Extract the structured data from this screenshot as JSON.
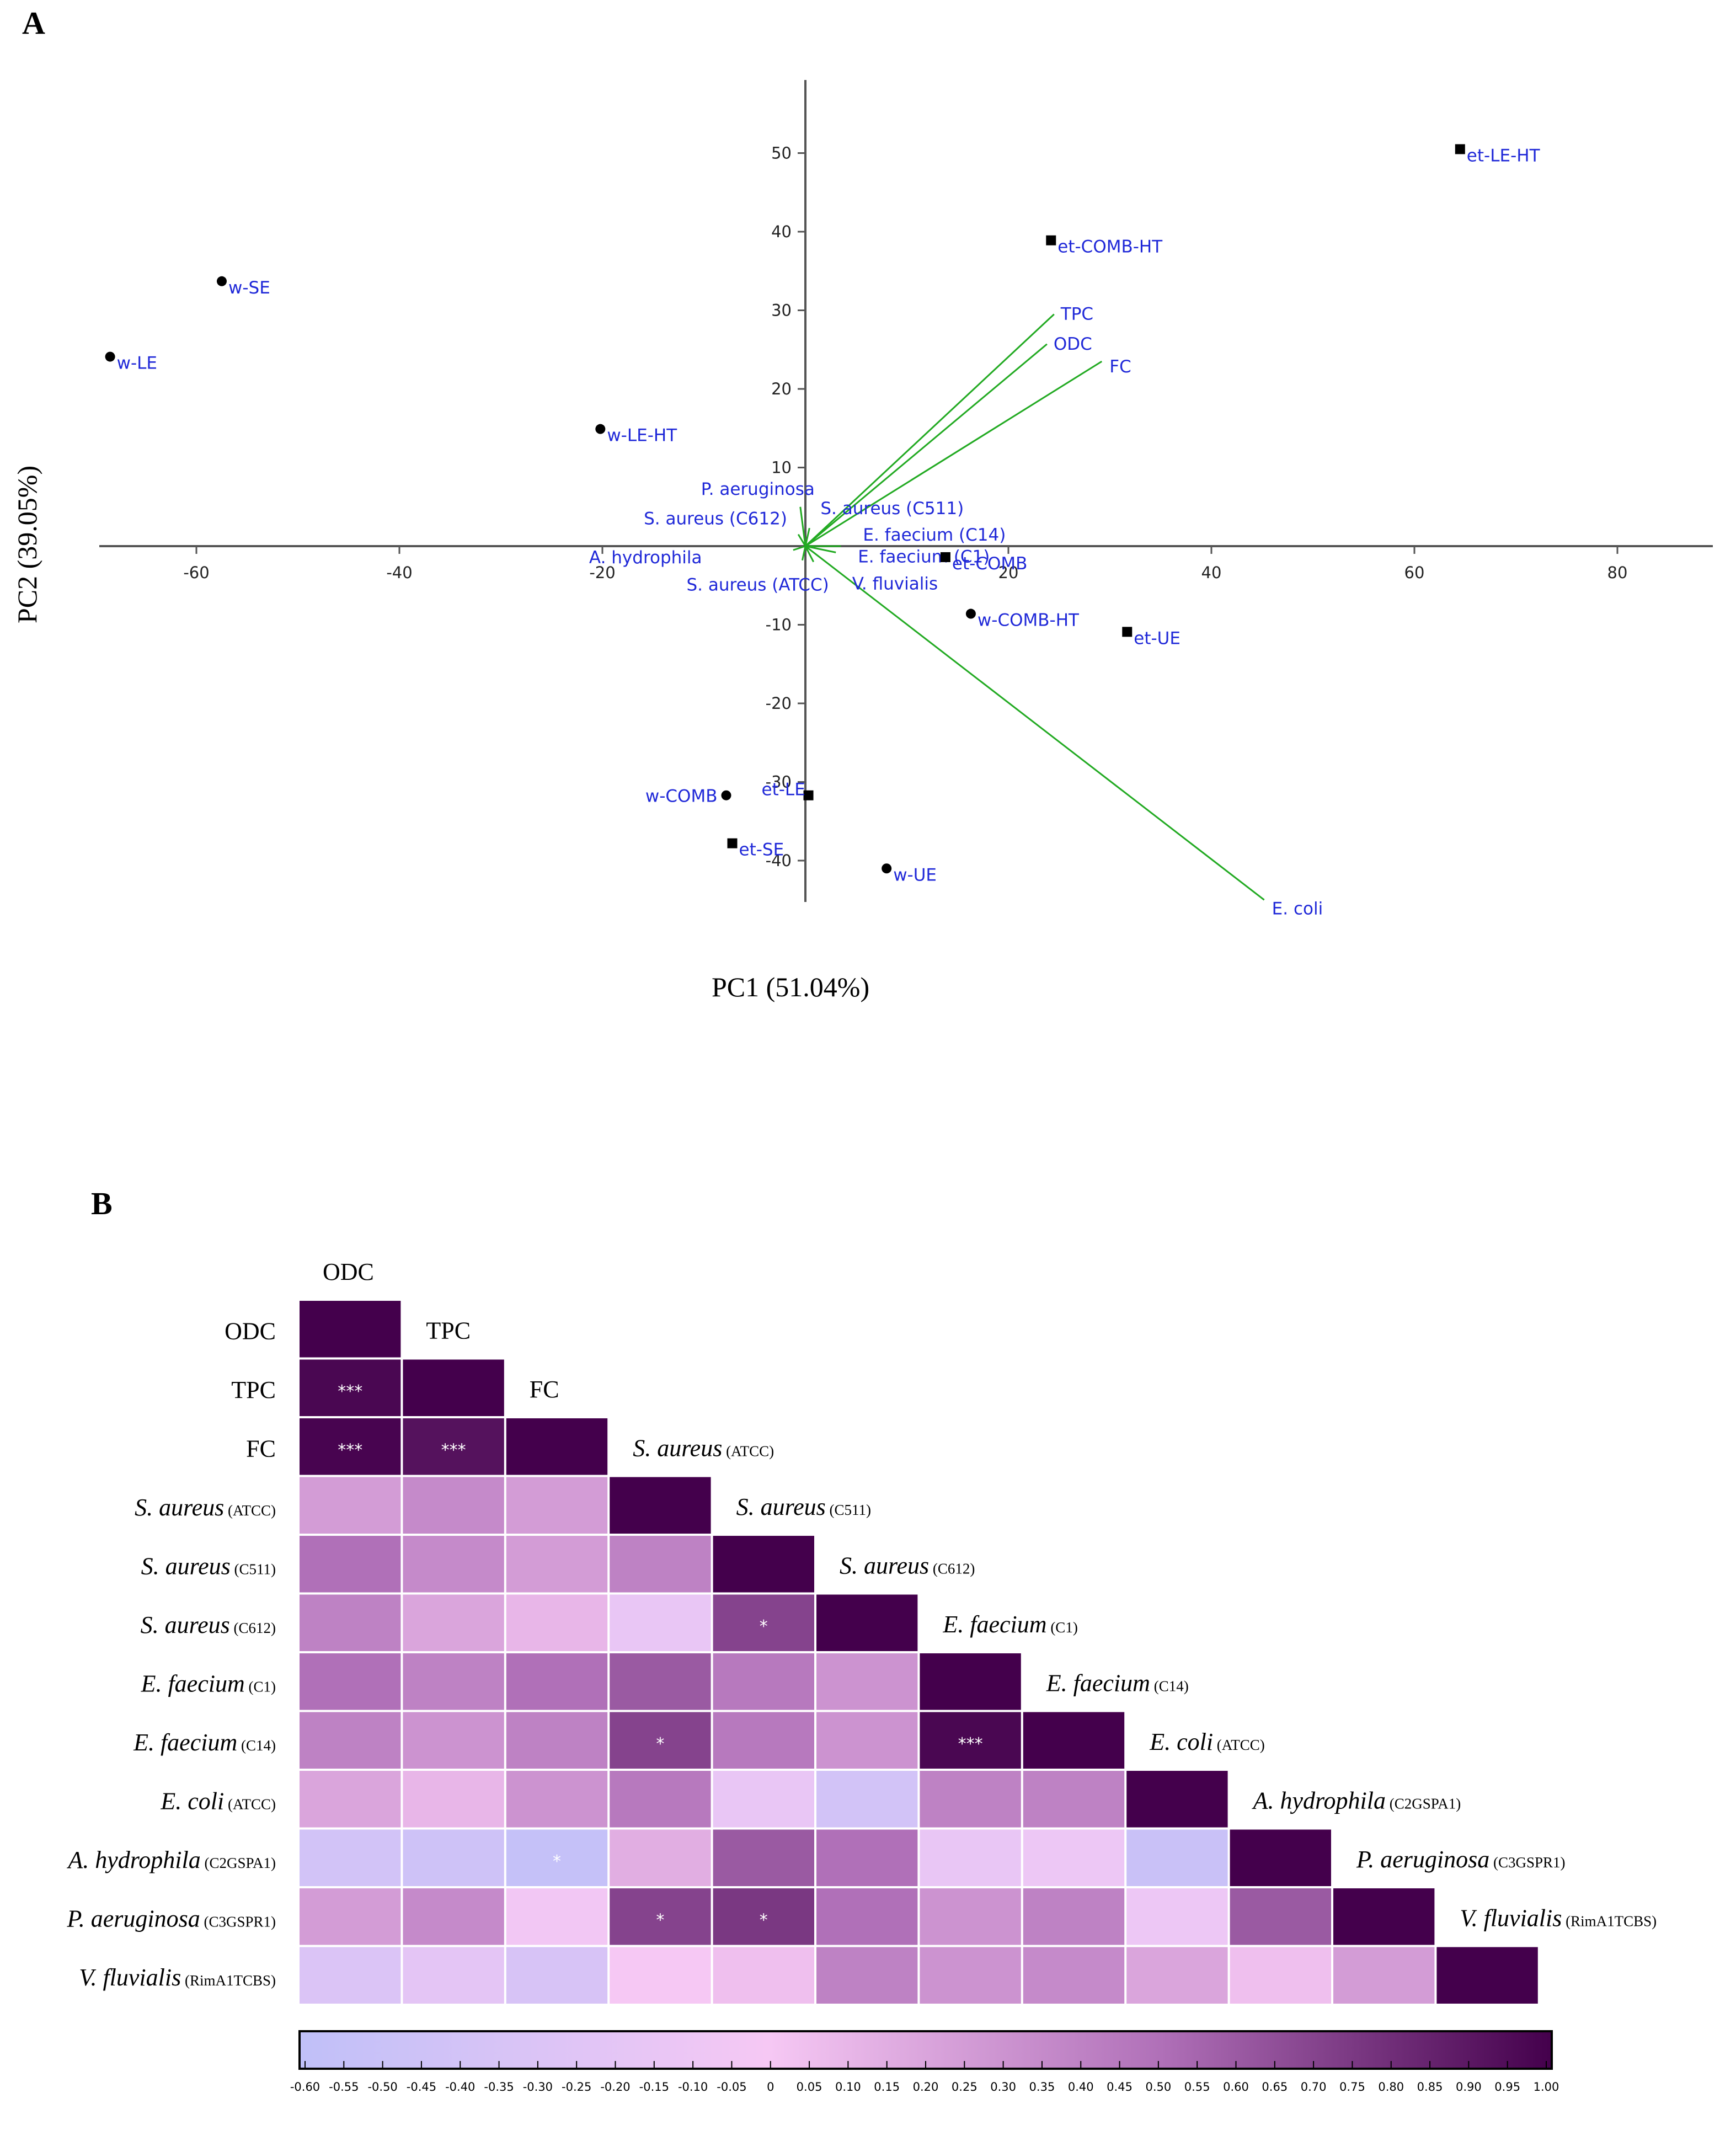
{
  "panel_a": {
    "letter": "A"
  },
  "panel_b": {
    "letter": "B"
  },
  "chart_data": [
    {
      "type": "scatter",
      "subtype": "pca-biplot",
      "xlabel": "PC1 (51.04%)",
      "ylabel": "PC2 (39.05%)",
      "xlim": [
        -70,
        90
      ],
      "ylim": [
        -45,
        60
      ],
      "xticks": [
        -60,
        -40,
        -20,
        20,
        40,
        60,
        80
      ],
      "yticks": [
        50,
        40,
        30,
        20,
        10,
        -10,
        -20,
        -30,
        -40
      ],
      "points": [
        {
          "label": "et-LE-HT",
          "x": 64.5,
          "y": 50.5,
          "marker": "square"
        },
        {
          "label": "et-COMB-HT",
          "x": 24.2,
          "y": 38.9,
          "marker": "square"
        },
        {
          "label": "w-SE",
          "x": -57.5,
          "y": 33.7,
          "marker": "circle"
        },
        {
          "label": "w-LE",
          "x": -68.5,
          "y": 24.1,
          "marker": "circle"
        },
        {
          "label": "w-LE-HT",
          "x": -20.2,
          "y": 14.9,
          "marker": "circle"
        },
        {
          "label": "et-COMB",
          "x": 13.8,
          "y": -1.4,
          "marker": "square"
        },
        {
          "label": "w-COMB-HT",
          "x": 16.3,
          "y": -8.6,
          "marker": "circle"
        },
        {
          "label": "et-UE",
          "x": 31.7,
          "y": -10.9,
          "marker": "square"
        },
        {
          "label": "w-COMB",
          "x": -7.8,
          "y": -31.7,
          "marker": "circle"
        },
        {
          "label": "et-LE",
          "x": 0.3,
          "y": -31.7,
          "marker": "square"
        },
        {
          "label": "et-SE",
          "x": -7.2,
          "y": -37.8,
          "marker": "square"
        },
        {
          "label": "w-UE",
          "x": 8.0,
          "y": -41.0,
          "marker": "circle"
        }
      ],
      "loadings": [
        {
          "label": "TPC",
          "x": 24.5,
          "y": 29.5
        },
        {
          "label": "ODC",
          "x": 23.8,
          "y": 25.7
        },
        {
          "label": "FC",
          "x": 29.2,
          "y": 23.5
        },
        {
          "label": "E. coli",
          "x": 45.2,
          "y": -45.0
        },
        {
          "label": "P. aeruginosa",
          "x": -0.5,
          "y": 5.0
        },
        {
          "label": "S. aureus (C511)",
          "x": 0.4,
          "y": 2.3
        },
        {
          "label": "S. aureus (C612)",
          "x": -0.7,
          "y": 1.5
        },
        {
          "label": "E. faecium (C14)",
          "x": 3.5,
          "y": 0.0
        },
        {
          "label": "E. faecium (C1)",
          "x": 3.0,
          "y": -0.8
        },
        {
          "label": "A. hydrophila",
          "x": -1.2,
          "y": -0.5
        },
        {
          "label": "S. aureus (ATCC)",
          "x": -0.3,
          "y": -1.8
        },
        {
          "label": "V. fluvialis",
          "x": 0.8,
          "y": -2.0
        }
      ]
    },
    {
      "type": "heatmap",
      "subtype": "lower-triangular correlation matrix",
      "variables": [
        {
          "main": "ODC",
          "sub": "",
          "italic": false
        },
        {
          "main": "TPC",
          "sub": "",
          "italic": false
        },
        {
          "main": "FC",
          "sub": "",
          "italic": false
        },
        {
          "main": "S. aureus",
          "sub": "(ATCC)",
          "italic": true
        },
        {
          "main": "S. aureus",
          "sub": "(C511)",
          "italic": true
        },
        {
          "main": "S. aureus",
          "sub": "(C612)",
          "italic": true
        },
        {
          "main": "E. faecium",
          "sub": "(C1)",
          "italic": true
        },
        {
          "main": "E. faecium",
          "sub": "(C14)",
          "italic": true
        },
        {
          "main": "E. coli",
          "sub": "(ATCC)",
          "italic": true
        },
        {
          "main": "A. hydrophila",
          "sub": "(C2GSPA1)",
          "italic": true
        },
        {
          "main": "P. aeruginosa",
          "sub": "(C3GSPR1)",
          "italic": true
        },
        {
          "main": "V. fluvialis",
          "sub": "(RimA1TCBS)",
          "italic": true
        }
      ],
      "matrix": [
        [
          1.0
        ],
        [
          0.97,
          1.0
        ],
        [
          0.98,
          0.92,
          1.0
        ],
        [
          0.25,
          0.35,
          0.25,
          1.0
        ],
        [
          0.5,
          0.35,
          0.25,
          0.4,
          1.0
        ],
        [
          0.4,
          0.2,
          0.1,
          -0.15,
          0.7,
          1.0
        ],
        [
          0.5,
          0.4,
          0.5,
          0.6,
          0.45,
          0.3,
          1.0
        ],
        [
          0.4,
          0.3,
          0.4,
          0.7,
          0.45,
          0.3,
          0.97,
          1.0
        ],
        [
          0.2,
          0.1,
          0.3,
          0.45,
          -0.15,
          -0.4,
          0.4,
          0.4,
          1.0
        ],
        [
          -0.4,
          -0.45,
          -0.55,
          0.15,
          0.6,
          0.5,
          -0.15,
          -0.1,
          -0.5,
          1.0
        ],
        [
          0.25,
          0.35,
          -0.05,
          0.7,
          0.75,
          0.5,
          0.3,
          0.4,
          -0.1,
          0.6,
          1.0
        ],
        [
          -0.3,
          -0.2,
          -0.35,
          0.0,
          0.05,
          0.4,
          0.3,
          0.35,
          0.2,
          0.05,
          0.25,
          1.0
        ]
      ],
      "significance": [
        {
          "row": 1,
          "col": 0,
          "mark": "***"
        },
        {
          "row": 2,
          "col": 0,
          "mark": "***"
        },
        {
          "row": 2,
          "col": 1,
          "mark": "***"
        },
        {
          "row": 5,
          "col": 4,
          "mark": "*"
        },
        {
          "row": 7,
          "col": 3,
          "mark": "*"
        },
        {
          "row": 7,
          "col": 6,
          "mark": "***"
        },
        {
          "row": 9,
          "col": 2,
          "mark": "*"
        },
        {
          "row": 10,
          "col": 3,
          "mark": "*"
        },
        {
          "row": 10,
          "col": 4,
          "mark": "*"
        }
      ],
      "colorbar": {
        "range": [
          -0.6,
          1.0
        ],
        "ticks": [
          "-0.60",
          "-0.55",
          "-0.50",
          "-0.45",
          "-0.40",
          "-0.35",
          "-0.30",
          "-0.25",
          "-0.20",
          "-0.15",
          "-0.10",
          "-0.05",
          "0",
          "0.05",
          "0.10",
          "0.15",
          "0.20",
          "0.25",
          "0.30",
          "0.35",
          "0.40",
          "0.45",
          "0.50",
          "0.55",
          "0.60",
          "0.65",
          "0.70",
          "0.75",
          "0.80",
          "0.85",
          "0.90",
          "0.95",
          "1.00"
        ],
        "colors": {
          "min": "#c0c0f8",
          "zero": "#f6c8f4",
          "mid": "#b070b8",
          "max": "#44004c"
        }
      }
    }
  ],
  "colors": {
    "vector": "#22aa22",
    "label": "#1f28d8",
    "marker": "#000000"
  }
}
